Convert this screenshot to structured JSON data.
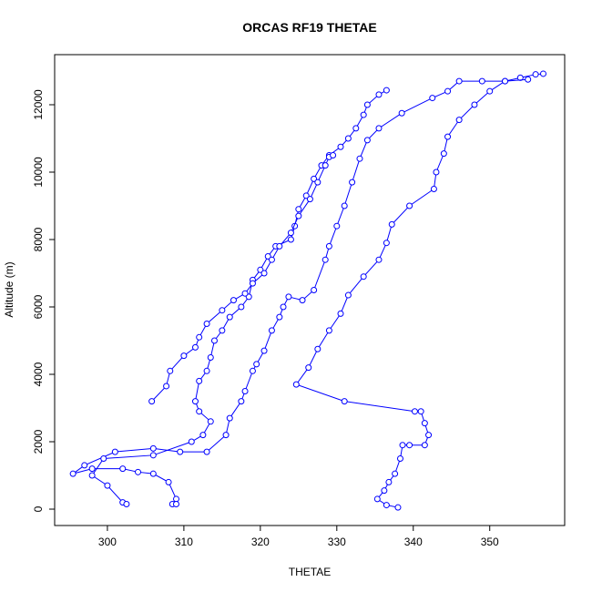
{
  "chart_data": {
    "type": "scatter",
    "title": "ORCAS RF19 THETAE",
    "x_label": "THETAE",
    "y_label": "Altitude (m)",
    "xlim": [
      293.1,
      359.8
    ],
    "ylim": [
      -486,
      13486
    ],
    "xticks": [
      300,
      310,
      320,
      330,
      340,
      350
    ],
    "yticks": [
      0,
      2000,
      4000,
      6000,
      8000,
      10000,
      12000
    ],
    "color": "#0000ff",
    "lines": true,
    "series": [
      {
        "color": "#0000ff",
        "x": [
          338,
          336.5,
          335.3,
          336.2,
          336.8,
          337.6,
          338.3,
          338.6,
          339.5,
          341.5,
          342,
          341.5,
          341,
          340.2,
          331,
          324.7,
          326.3,
          327.5,
          329,
          330.5,
          331.5,
          333.5,
          335.5,
          336.5,
          337.2,
          339.5,
          342.7,
          343,
          344,
          344.5,
          346,
          348,
          350,
          352,
          354,
          356,
          357
        ],
        "values": [
          50,
          120,
          300,
          550,
          800,
          1050,
          1500,
          1900,
          1900,
          1900,
          2200,
          2550,
          2900,
          2900,
          3200,
          3700,
          4200,
          4750,
          5300,
          5800,
          6350,
          6900,
          7400,
          7900,
          8450,
          9000,
          9500,
          10000,
          10550,
          11050,
          11550,
          12000,
          12400,
          12700,
          12800,
          12900,
          12920
        ]
      },
      {
        "color": "#0000ff",
        "x": [
          355,
          352,
          349,
          346,
          344.5,
          342.5,
          338.5,
          335.5,
          334,
          333,
          332,
          331,
          330,
          329,
          328.5,
          327,
          325.5,
          323.7,
          323,
          322.5,
          321.5,
          320.5,
          319.5,
          319,
          318,
          317.5,
          316,
          315.5,
          313,
          309.5,
          306,
          301,
          297,
          295.5,
          298,
          302,
          304,
          306,
          308,
          309,
          308.5,
          309
        ],
        "values": [
          12750,
          12700,
          12700,
          12700,
          12400,
          12200,
          11750,
          11300,
          10950,
          10400,
          9700,
          9000,
          8400,
          7800,
          7400,
          6500,
          6200,
          6300,
          6000,
          5700,
          5300,
          4700,
          4300,
          4100,
          3500,
          3200,
          2700,
          2200,
          1700,
          1700,
          1800,
          1700,
          1300,
          1050,
          1200,
          1200,
          1100,
          1050,
          800,
          300,
          150,
          150
        ]
      },
      {
        "color": "#0000ff",
        "x": [
          336.5,
          335.5,
          334,
          333.5,
          332.5,
          331.5,
          330.5,
          329,
          328,
          327,
          326,
          325,
          324.5,
          324,
          322,
          321,
          320,
          319,
          318.5,
          317.5,
          316,
          315,
          314,
          313.5,
          313,
          312,
          311.5,
          312,
          313.5,
          312.5,
          311,
          306,
          299.5,
          298,
          300,
          302,
          302.5
        ],
        "values": [
          12430,
          12300,
          12000,
          11700,
          11300,
          11000,
          10750,
          10500,
          10200,
          9800,
          9300,
          8900,
          8400,
          8000,
          7800,
          7500,
          7100,
          6800,
          6300,
          6000,
          5700,
          5300,
          5000,
          4500,
          4100,
          3800,
          3200,
          2900,
          2600,
          2200,
          2000,
          1600,
          1500,
          1000,
          700,
          200,
          150
        ]
      },
      {
        "color": "#0000ff",
        "x": [
          305.8,
          307.7,
          308.2,
          310,
          311.5,
          312,
          313,
          315,
          316.5,
          318,
          319,
          320.5,
          321.5,
          322.5,
          324,
          325,
          326.5,
          327.5,
          328.5,
          329,
          329.5
        ],
        "values": [
          3200,
          3650,
          4100,
          4550,
          4800,
          5100,
          5500,
          5900,
          6200,
          6400,
          6700,
          7000,
          7400,
          7800,
          8200,
          8700,
          9200,
          9700,
          10200,
          10450,
          10500
        ]
      }
    ]
  }
}
